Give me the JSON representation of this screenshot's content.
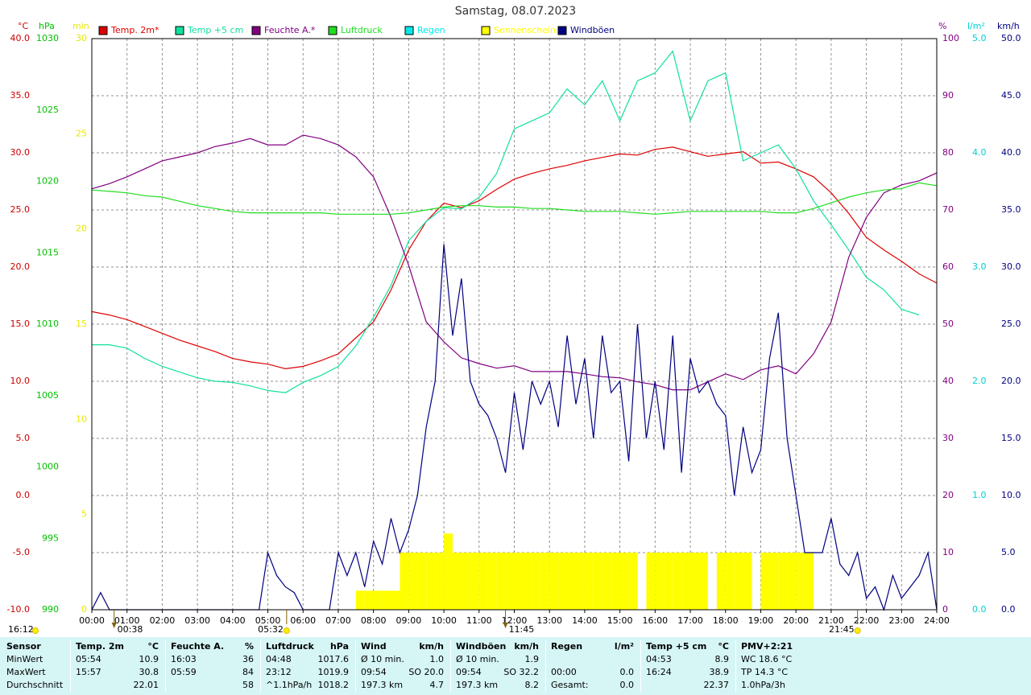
{
  "chart_data": {
    "type": "line",
    "title": "Samstag, 08.07.2023",
    "xlim": [
      0,
      24
    ],
    "xticks": [
      {
        "value": 0,
        "label": "00:00"
      },
      {
        "value": 1,
        "label": "01:00"
      },
      {
        "value": 2,
        "label": "02:00"
      },
      {
        "value": 3,
        "label": "03:00"
      },
      {
        "value": 4,
        "label": "04:00"
      },
      {
        "value": 5,
        "label": "05:00"
      },
      {
        "value": 6,
        "label": "06:00"
      },
      {
        "value": 7,
        "label": "07:00"
      },
      {
        "value": 8,
        "label": "08:00"
      },
      {
        "value": 9,
        "label": "09:00"
      },
      {
        "value": 10,
        "label": "10:00"
      },
      {
        "value": 11,
        "label": "11:00"
      },
      {
        "value": 12,
        "label": "12:00"
      },
      {
        "value": 13,
        "label": "13:00"
      },
      {
        "value": 14,
        "label": "14:00"
      },
      {
        "value": 15,
        "label": "15:00"
      },
      {
        "value": 16,
        "label": "16:00"
      },
      {
        "value": 17,
        "label": "17:00"
      },
      {
        "value": 18,
        "label": "18:00"
      },
      {
        "value": 19,
        "label": "19:00"
      },
      {
        "value": 20,
        "label": "20:00"
      },
      {
        "value": 21,
        "label": "21:00"
      },
      {
        "value": 22,
        "label": "22:00"
      },
      {
        "value": 23,
        "label": "23:00"
      },
      {
        "value": 24,
        "label": "24:00"
      }
    ],
    "grid": true,
    "yaxes": [
      {
        "label": "°C",
        "color": "#cc0000",
        "side": "left",
        "ylim": [
          -10,
          40
        ],
        "yticks": [
          {
            "value": -10,
            "label": "-10.0"
          },
          {
            "value": -5,
            "label": "-5.0"
          },
          {
            "value": 0,
            "label": "0.0"
          },
          {
            "value": 5,
            "label": "5.0"
          },
          {
            "value": 10,
            "label": "10.0"
          },
          {
            "value": 15,
            "label": "15.0"
          },
          {
            "value": 20,
            "label": "20.0"
          },
          {
            "value": 25,
            "label": "25.0"
          },
          {
            "value": 30,
            "label": "30.0"
          },
          {
            "value": 35,
            "label": "35.0"
          },
          {
            "value": 40,
            "label": "40.0"
          }
        ]
      },
      {
        "label": "hPa",
        "color": "#00c000",
        "side": "left",
        "ylim": [
          990,
          1030
        ],
        "yticks": [
          990,
          995,
          1000,
          1005,
          1010,
          1015,
          1020,
          1025,
          1030
        ]
      },
      {
        "label": "min",
        "color": "#e8e800",
        "side": "left",
        "ylim": [
          0,
          30
        ],
        "yticks": [
          0,
          5,
          10,
          15,
          20,
          25,
          30
        ]
      },
      {
        "label": "%",
        "color": "#800080",
        "side": "right",
        "ylim": [
          0,
          100
        ],
        "yticks": [
          0,
          10,
          20,
          30,
          40,
          50,
          60,
          70,
          80,
          90,
          100
        ]
      },
      {
        "label": "l/m²",
        "color": "#00d0d0",
        "side": "right",
        "ylim": [
          0,
          5
        ],
        "yticks": [
          {
            "value": 0,
            "label": "0.0"
          },
          {
            "value": 1,
            "label": "1.0"
          },
          {
            "value": 2,
            "label": "2.0"
          },
          {
            "value": 3,
            "label": "3.0"
          },
          {
            "value": 4,
            "label": "4.0"
          },
          {
            "value": 5,
            "label": "5.0"
          }
        ]
      },
      {
        "label": "km/h",
        "color": "#000080",
        "side": "right",
        "ylim": [
          0,
          50
        ],
        "yticks": [
          {
            "value": 0,
            "label": "0.0"
          },
          {
            "value": 5,
            "label": "5.0"
          },
          {
            "value": 10,
            "label": "10.0"
          },
          {
            "value": 15,
            "label": "15.0"
          },
          {
            "value": 20,
            "label": "20.0"
          },
          {
            "value": 25,
            "label": "25.0"
          },
          {
            "value": 30,
            "label": "30.0"
          },
          {
            "value": 35,
            "label": "35.0"
          },
          {
            "value": 40,
            "label": "40.0"
          },
          {
            "value": 45,
            "label": "45.0"
          },
          {
            "value": 50,
            "label": "50.0"
          }
        ]
      }
    ],
    "x": [
      0,
      0.5,
      1,
      1.5,
      2,
      2.5,
      3,
      3.5,
      4,
      4.5,
      5,
      5.5,
      6,
      6.5,
      7,
      7.5,
      8,
      8.5,
      9,
      9.5,
      10,
      10.5,
      11,
      11.5,
      12,
      12.5,
      13,
      13.5,
      14,
      14.5,
      15,
      15.5,
      16,
      16.5,
      17,
      17.5,
      18,
      18.5,
      19,
      19.5,
      20,
      20.5,
      21,
      21.5,
      22,
      22.5,
      23,
      23.5,
      24
    ],
    "series": [
      {
        "name": "Temp. 2m*",
        "color": "#dd0000",
        "axis": 0,
        "values": [
          16.1,
          15.8,
          15.4,
          14.8,
          14.2,
          13.6,
          13.1,
          12.6,
          12.0,
          11.7,
          11.5,
          11.1,
          11.3,
          11.8,
          12.4,
          13.8,
          15.2,
          18.0,
          21.5,
          24.0,
          25.6,
          25.2,
          25.8,
          26.8,
          27.7,
          28.2,
          28.6,
          28.9,
          29.3,
          29.6,
          29.9,
          29.8,
          30.3,
          30.5,
          30.1,
          29.7,
          29.9,
          30.1,
          29.1,
          29.2,
          28.6,
          27.9,
          26.5,
          24.7,
          22.6,
          21.5,
          20.5,
          19.4,
          18.6
        ]
      },
      {
        "name": "Temp +5 cm",
        "color": "#10e0a0",
        "axis": 0,
        "values": [
          13.2,
          13.2,
          12.9,
          12.0,
          11.3,
          10.8,
          10.3,
          10.0,
          9.9,
          9.6,
          9.2,
          9.0,
          9.9,
          10.5,
          11.3,
          13.1,
          15.6,
          18.4,
          22.3,
          24.0,
          25.2,
          25.1,
          26.1,
          28.2,
          32.1,
          32.8,
          33.5,
          35.6,
          34.2,
          36.3,
          32.8,
          36.3,
          37.0,
          38.9,
          32.8,
          36.3,
          37.0,
          29.3,
          30.0,
          30.7,
          28.6,
          25.8,
          23.7,
          21.5,
          19.1,
          18.0,
          16.3,
          15.8,
          null
        ]
      },
      {
        "name": "Feuchte A.*",
        "color": "#800080",
        "axis": 3,
        "values": [
          73.7,
          74.6,
          75.8,
          77.2,
          78.6,
          79.3,
          80.0,
          81.1,
          81.7,
          82.5,
          81.4,
          81.4,
          83.1,
          82.5,
          81.4,
          79.3,
          75.8,
          68.7,
          60.3,
          50.4,
          46.9,
          44.1,
          43.1,
          42.3,
          42.7,
          41.7,
          41.7,
          41.7,
          41.3,
          40.8,
          40.6,
          39.9,
          39.4,
          38.5,
          38.5,
          39.9,
          41.3,
          40.3,
          42.0,
          42.7,
          41.3,
          44.8,
          50.4,
          61.7,
          68.7,
          73.0,
          74.4,
          75.1,
          76.5
        ]
      },
      {
        "name": "Luftdruck",
        "color": "#20dd20",
        "axis": 1,
        "values": [
          1019.4,
          1019.3,
          1019.2,
          1019.0,
          1018.9,
          1018.6,
          1018.3,
          1018.1,
          1017.9,
          1017.8,
          1017.8,
          1017.8,
          1017.8,
          1017.8,
          1017.7,
          1017.7,
          1017.7,
          1017.7,
          1017.8,
          1018.0,
          1018.2,
          1018.3,
          1018.3,
          1018.2,
          1018.2,
          1018.1,
          1018.1,
          1018.0,
          1017.9,
          1017.9,
          1017.9,
          1017.8,
          1017.7,
          1017.8,
          1017.9,
          1017.9,
          1017.9,
          1017.9,
          1017.9,
          1017.8,
          1017.8,
          1018.1,
          1018.5,
          1018.9,
          1019.2,
          1019.4,
          1019.5,
          1019.9,
          1019.7
        ]
      },
      {
        "name": "Regen",
        "color": "#00e8e8",
        "axis": 4
      },
      {
        "name": "Sonnenschein",
        "color": "#ffff00",
        "axis": 2,
        "type": "bar",
        "x": [
          7.5,
          7.75,
          8,
          8.25,
          8.5,
          8.75,
          9,
          9.25,
          9.5,
          9.75,
          10,
          10.25,
          10.5,
          10.75,
          11,
          11.25,
          11.5,
          11.75,
          12,
          12.25,
          12.5,
          12.75,
          13,
          13.25,
          13.5,
          13.75,
          14,
          14.25,
          14.5,
          14.75,
          15,
          15.25,
          15.5,
          15.75,
          16,
          16.25,
          16.5,
          16.75,
          17,
          17.25,
          17.5,
          17.75,
          18,
          18.25,
          18.5,
          18.75,
          19,
          19.25,
          19.5,
          19.75,
          20,
          20.25
        ],
        "values": [
          1,
          1,
          1,
          1,
          1,
          3,
          3,
          3,
          3,
          3,
          4,
          3,
          3,
          3,
          3,
          3,
          3,
          3,
          3,
          3,
          3,
          3,
          3,
          3,
          3,
          3,
          3,
          3,
          3,
          3,
          3,
          3,
          0,
          3,
          3,
          3,
          3,
          3,
          3,
          3,
          0,
          3,
          3,
          3,
          3,
          0,
          3,
          3,
          3,
          3,
          3,
          3
        ]
      },
      {
        "name": "Windböen",
        "color": "#000080",
        "axis": 5,
        "x": [
          0,
          0.25,
          0.5,
          0.75,
          1,
          1.25,
          1.5,
          1.75,
          2,
          2.25,
          2.5,
          2.75,
          3,
          3.25,
          3.5,
          3.75,
          4,
          4.25,
          4.5,
          4.75,
          5,
          5.25,
          5.5,
          5.75,
          6,
          6.25,
          6.5,
          6.75,
          7,
          7.25,
          7.5,
          7.75,
          8,
          8.25,
          8.5,
          8.75,
          9,
          9.25,
          9.5,
          9.75,
          10,
          10.25,
          10.5,
          10.75,
          11,
          11.25,
          11.5,
          11.75,
          12,
          12.25,
          12.5,
          12.75,
          13,
          13.25,
          13.5,
          13.75,
          14,
          14.25,
          14.5,
          14.75,
          15,
          15.25,
          15.5,
          15.75,
          16,
          16.25,
          16.5,
          16.75,
          17,
          17.25,
          17.5,
          17.75,
          18,
          18.25,
          18.5,
          18.75,
          19,
          19.25,
          19.5,
          19.75,
          20,
          20.25,
          20.5,
          20.75,
          21,
          21.25,
          21.5,
          21.75,
          22,
          22.25,
          22.5,
          22.75,
          23,
          23.25,
          23.5,
          23.75,
          24
        ],
        "values": [
          0,
          1.5,
          0,
          0,
          0,
          0,
          0,
          0,
          0,
          0,
          0,
          0,
          0,
          0,
          0,
          0,
          0,
          0,
          0,
          0,
          5,
          3,
          2,
          1.5,
          0,
          0,
          0,
          0,
          5,
          3,
          5,
          2,
          6,
          4,
          8,
          5,
          7,
          10,
          16,
          20,
          32,
          24,
          29,
          20,
          18,
          17,
          15,
          12,
          19,
          14,
          20,
          18,
          20,
          16,
          24,
          18,
          22,
          15,
          24,
          19,
          20,
          13,
          25,
          15,
          20,
          14,
          24,
          12,
          22,
          19,
          20,
          18,
          17,
          10,
          16,
          12,
          14,
          22,
          26,
          15,
          10,
          5,
          5,
          5,
          8,
          4,
          3,
          5,
          1,
          2,
          0,
          3,
          1,
          2,
          3,
          5,
          0
        ]
      }
    ],
    "day_length": "16:12",
    "markers": [
      {
        "value": 0.6333,
        "label": "00:38"
      },
      {
        "value": 5.5333,
        "label": "05:32"
      },
      {
        "value": 11.75,
        "label": "11:45"
      },
      {
        "value": 21.75,
        "label": "21:45"
      }
    ]
  },
  "summary_table": {
    "header": [
      "Sensor",
      "Temp. 2m",
      "°C",
      "Feuchte A.",
      "%",
      "Luftdruck",
      "hPa",
      "Wind",
      "km/h",
      "Windböen",
      "km/h",
      "Regen",
      "l/m²",
      "Temp +5 cm",
      "°C",
      "PMV+2:21"
    ],
    "rows": [
      [
        "MinWert",
        "05:54",
        "10.9",
        "16:03",
        "36",
        "04:48",
        "1017.6",
        "Ø 10 min.",
        "1.0",
        "Ø 10 min.",
        "1.9",
        null,
        null,
        "04:53",
        "8.9",
        "WC 18.6 °C"
      ],
      [
        "MaxWert",
        "15:57",
        "30.8",
        "05:59",
        "84",
        "23:12",
        "1019.9",
        "09:54",
        "SO 20.0",
        "09:54",
        "SO 32.2",
        "00:00",
        "0.0",
        "16:24",
        "38.9",
        "TP 14.3 °C"
      ],
      [
        "Durchschnitt",
        null,
        "22.01",
        null,
        "58",
        "^1.1hPa/h",
        "1018.2",
        "197.3 km",
        "4.7",
        "197.3 km",
        "8.2",
        "Gesamt:",
        "0.0",
        null,
        "22.37",
        "1.0hPa/3h"
      ]
    ]
  }
}
